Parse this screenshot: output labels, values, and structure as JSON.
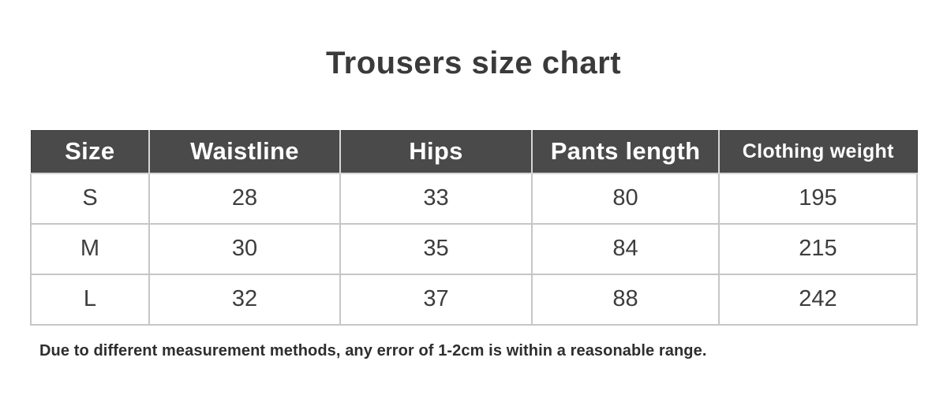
{
  "title": "Trousers size chart",
  "note": "Due to different measurement methods, any error of 1-2cm is within a reasonable range.",
  "colors": {
    "header_bg": "#4a4a4a",
    "header_text": "#ffffff",
    "header_divider": "#d6d6d6",
    "border": "#c6c6c6",
    "cell_text": "#3d3d3d",
    "title_text": "#3a3a3a",
    "note_text": "#2e2e2e"
  },
  "chart_data": {
    "type": "table",
    "title": "Trousers size chart",
    "columns": [
      "Size",
      "Waistline",
      "Hips",
      "Pants length",
      "Clothing weight"
    ],
    "rows": [
      [
        "S",
        28,
        33,
        80,
        195
      ],
      [
        "M",
        30,
        35,
        84,
        215
      ],
      [
        "L",
        32,
        37,
        88,
        242
      ]
    ],
    "note": "Due to different measurement methods, any error of 1-2cm is within a reasonable range."
  }
}
